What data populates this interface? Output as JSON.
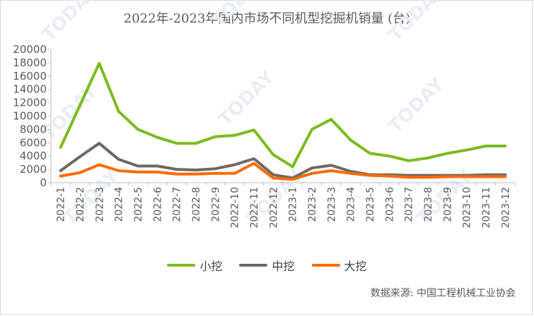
{
  "chart_data": {
    "type": "line",
    "title": "2022年-2023年国内市场不同机型挖掘机销量 (台)",
    "categories": [
      "2022-1",
      "2022-2",
      "2022-3",
      "2022-4",
      "2022-5",
      "2022-6",
      "2022-7",
      "2022-8",
      "2022-9",
      "2022-10",
      "2022-11",
      "2022-12",
      "2023-1",
      "2023-2",
      "2023-3",
      "2023-4",
      "2023-5",
      "2023-6",
      "2023-7",
      "2023-8",
      "2023-9",
      "2023-10",
      "2023-11",
      "2023-12"
    ],
    "ylim": [
      0,
      20000
    ],
    "yticks": [
      0,
      2000,
      4000,
      6000,
      8000,
      10000,
      12000,
      14000,
      16000,
      18000,
      20000
    ],
    "grid": false,
    "legend_position": "bottom",
    "series": [
      {
        "name": "小挖",
        "color": "#7CBB1E",
        "values": [
          5300,
          11600,
          17900,
          10700,
          8000,
          6800,
          5900,
          5900,
          6900,
          7100,
          7900,
          4200,
          2400,
          8000,
          9500,
          6400,
          4400,
          4000,
          3300,
          3700,
          4400,
          4900,
          5500,
          5500
        ]
      },
      {
        "name": "中挖",
        "color": "#6E6860",
        "values": [
          1800,
          3900,
          5900,
          3500,
          2500,
          2500,
          2000,
          1900,
          2100,
          2700,
          3600,
          1200,
          700,
          2200,
          2600,
          1700,
          1200,
          1200,
          1100,
          1100,
          1100,
          1100,
          1200,
          1200
        ]
      },
      {
        "name": "大挖",
        "color": "#FF6A00",
        "values": [
          1000,
          1500,
          2700,
          1800,
          1600,
          1600,
          1300,
          1300,
          1400,
          1400,
          2900,
          700,
          500,
          1400,
          1800,
          1400,
          1100,
          1000,
          800,
          800,
          900,
          900,
          900,
          900
        ]
      }
    ]
  },
  "source_text": "数据来源:  中国工程机械工业协会",
  "watermark_text": "TODAY"
}
